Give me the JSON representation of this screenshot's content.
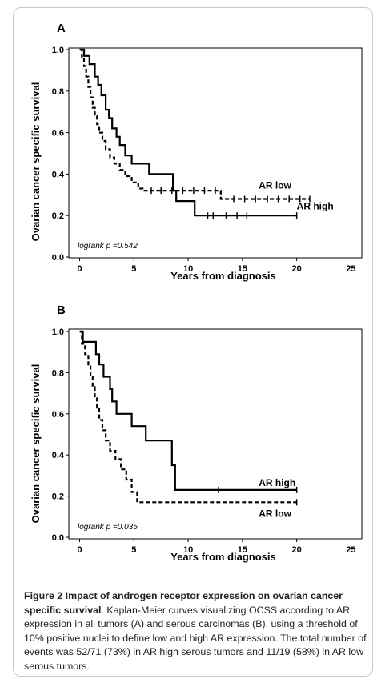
{
  "chart_data": [
    {
      "type": "line",
      "panel": "A",
      "xlabel": "Years from diagnosis",
      "ylabel": "Ovarian cancer specific survival",
      "xticks": [
        0,
        5,
        10,
        15,
        20,
        25
      ],
      "yticks": [
        "0.0",
        "0.2",
        "0.4",
        "0.6",
        "0.8",
        "1.0"
      ],
      "xlim": [
        -1,
        26
      ],
      "ylim": [
        0,
        1
      ],
      "annotation": "logrank p =0.542",
      "series": [
        {
          "name": "AR high",
          "style": "solid",
          "label_at": [
            20,
            0.245
          ],
          "points": [
            [
              0,
              1.0
            ],
            [
              0.4,
              0.97
            ],
            [
              0.9,
              0.93
            ],
            [
              1.4,
              0.87
            ],
            [
              1.7,
              0.83
            ],
            [
              2.0,
              0.78
            ],
            [
              2.4,
              0.71
            ],
            [
              2.7,
              0.67
            ],
            [
              3.0,
              0.62
            ],
            [
              3.4,
              0.58
            ],
            [
              3.7,
              0.54
            ],
            [
              4.2,
              0.49
            ],
            [
              4.8,
              0.45
            ],
            [
              6.0,
              0.45
            ],
            [
              6.4,
              0.4
            ],
            [
              8.5,
              0.4
            ],
            [
              8.6,
              0.32
            ],
            [
              8.9,
              0.27
            ],
            [
              10.5,
              0.27
            ],
            [
              10.6,
              0.2
            ],
            [
              20.0,
              0.2
            ]
          ],
          "censor_x": [
            11.8,
            12.3,
            13.5,
            14.5,
            15.4,
            20.0
          ]
        },
        {
          "name": "AR low",
          "style": "dashed",
          "label_at": [
            16.5,
            0.345
          ],
          "points": [
            [
              0,
              1.0
            ],
            [
              0.2,
              0.96
            ],
            [
              0.4,
              0.92
            ],
            [
              0.6,
              0.87
            ],
            [
              0.8,
              0.82
            ],
            [
              1.0,
              0.77
            ],
            [
              1.2,
              0.72
            ],
            [
              1.4,
              0.68
            ],
            [
              1.6,
              0.64
            ],
            [
              1.8,
              0.6
            ],
            [
              2.1,
              0.56
            ],
            [
              2.4,
              0.52
            ],
            [
              2.8,
              0.48
            ],
            [
              3.2,
              0.45
            ],
            [
              3.7,
              0.42
            ],
            [
              4.2,
              0.39
            ],
            [
              4.8,
              0.36
            ],
            [
              5.4,
              0.33
            ],
            [
              5.8,
              0.32
            ],
            [
              12.9,
              0.32
            ],
            [
              13.0,
              0.28
            ],
            [
              21.2,
              0.28
            ]
          ],
          "censor_x": [
            6.6,
            7.5,
            8.5,
            9.5,
            10.5,
            11.5,
            12.5,
            14.2,
            15.2,
            16.2,
            17.3,
            18.3,
            19.3,
            20.3,
            21.2
          ]
        }
      ]
    },
    {
      "type": "line",
      "panel": "B",
      "xlabel": "Years from diagnosis",
      "ylabel": "Ovarian cancer specific survival",
      "xticks": [
        0,
        5,
        10,
        15,
        20,
        25
      ],
      "yticks": [
        "0.0",
        "0.2",
        "0.4",
        "0.6",
        "0.8",
        "1.0"
      ],
      "xlim": [
        -1,
        26
      ],
      "ylim": [
        0,
        1
      ],
      "annotation": "logrank p =0.035",
      "series": [
        {
          "name": "AR high",
          "style": "solid",
          "label_at": [
            16.5,
            0.265
          ],
          "points": [
            [
              0,
              1.0
            ],
            [
              0.3,
              0.95
            ],
            [
              1.4,
              0.95
            ],
            [
              1.5,
              0.89
            ],
            [
              1.8,
              0.84
            ],
            [
              2.2,
              0.78
            ],
            [
              2.8,
              0.72
            ],
            [
              3.0,
              0.66
            ],
            [
              3.4,
              0.6
            ],
            [
              4.7,
              0.6
            ],
            [
              4.8,
              0.54
            ],
            [
              6.0,
              0.54
            ],
            [
              6.1,
              0.47
            ],
            [
              8.4,
              0.47
            ],
            [
              8.5,
              0.35
            ],
            [
              8.8,
              0.23
            ],
            [
              20.0,
              0.23
            ]
          ],
          "censor_x": [
            12.8,
            20.0
          ]
        },
        {
          "name": "AR low",
          "style": "dashed",
          "label_at": [
            16.5,
            0.115
          ],
          "points": [
            [
              0,
              1.0
            ],
            [
              0.2,
              0.94
            ],
            [
              0.5,
              0.89
            ],
            [
              0.8,
              0.84
            ],
            [
              1.0,
              0.78
            ],
            [
              1.2,
              0.73
            ],
            [
              1.4,
              0.68
            ],
            [
              1.6,
              0.63
            ],
            [
              1.8,
              0.57
            ],
            [
              2.1,
              0.52
            ],
            [
              2.4,
              0.47
            ],
            [
              2.8,
              0.42
            ],
            [
              3.3,
              0.38
            ],
            [
              3.8,
              0.33
            ],
            [
              4.3,
              0.28
            ],
            [
              4.8,
              0.22
            ],
            [
              5.3,
              0.17
            ],
            [
              20.0,
              0.17
            ]
          ],
          "censor_x": [
            20.0
          ]
        }
      ]
    }
  ],
  "caption": {
    "title": "Figure 2 Impact of androgen receptor expression on ovarian cancer specific survival",
    "text": ". Kaplan-Meier curves visualizing OCSS according to AR expression in all tumors (A) and serous carcinomas (B), using a threshold of 10% positive nuclei to define low and high AR expression. The total number of events was 52/71 (73%) in AR high serous tumors and 11/19 (58%) in AR low serous tumors."
  }
}
